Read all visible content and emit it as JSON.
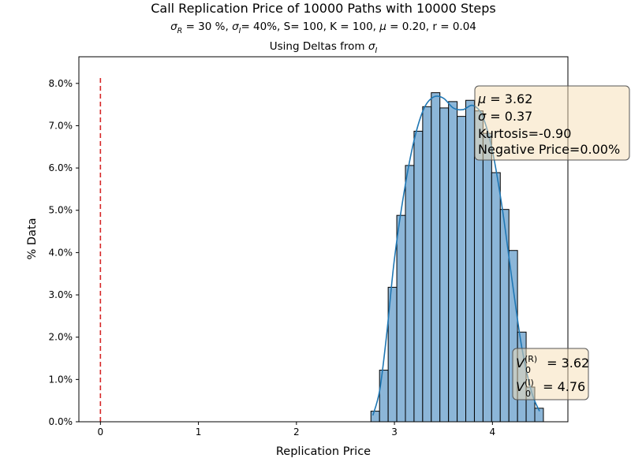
{
  "chart_data": {
    "type": "bar",
    "title": "Call Replication Price of 10000 Paths with 10000 Steps",
    "subtitle_line2": "σR = 30 %, σI= 40%, S= 100, K = 100, μ = 0.20, r = 0.04",
    "subtitle_line3": "Using Deltas from σI",
    "xlabel": "Replication Price",
    "ylabel": "% Data",
    "xlim": [
      -0.22,
      4.77
    ],
    "ylim": [
      0,
      0.0863
    ],
    "x_ticks": [
      0,
      1,
      2,
      3,
      4
    ],
    "x_tick_labels": [
      "0",
      "1",
      "2",
      "3",
      "4"
    ],
    "y_ticks": [
      0,
      0.01,
      0.02,
      0.03,
      0.04,
      0.05,
      0.06,
      0.07,
      0.08
    ],
    "y_tick_labels": [
      "0.0%",
      "1.0%",
      "2.0%",
      "3.0%",
      "4.0%",
      "5.0%",
      "6.0%",
      "7.0%",
      "8.0%"
    ],
    "bin_edges": [
      2.76,
      2.848,
      2.936,
      3.024,
      3.112,
      3.2,
      3.288,
      3.376,
      3.464,
      3.552,
      3.64,
      3.728,
      3.816,
      3.904,
      3.992,
      4.08,
      4.168,
      4.256,
      4.344,
      4.432,
      4.52
    ],
    "values": [
      0.0025,
      0.0122,
      0.0318,
      0.0488,
      0.0606,
      0.0687,
      0.0745,
      0.0778,
      0.0742,
      0.0757,
      0.0722,
      0.076,
      0.0735,
      0.0682,
      0.0589,
      0.0502,
      0.0405,
      0.0212,
      0.0082,
      0.0032
    ],
    "kde_x": [
      2.78,
      2.85,
      2.92,
      3.0,
      3.1,
      3.2,
      3.3,
      3.4,
      3.5,
      3.6,
      3.7,
      3.8,
      3.9,
      4.0,
      4.1,
      4.2,
      4.3,
      4.4,
      4.48
    ],
    "kde_y": [
      0.0015,
      0.0075,
      0.0205,
      0.0385,
      0.0545,
      0.0665,
      0.074,
      0.0768,
      0.0765,
      0.0742,
      0.0738,
      0.0748,
      0.0722,
      0.064,
      0.0505,
      0.0335,
      0.0175,
      0.007,
      0.0025
    ],
    "reference_line": {
      "x": 0,
      "y_top": 0.0815,
      "color": "#d62728",
      "style": "dashed"
    },
    "colors": {
      "bar_fill": "#8cb6d8",
      "bar_edge": "#000000",
      "kde": "#1f77b4",
      "box_fill": "#f5deb3",
      "box_edge": "#555555"
    },
    "stats_box": {
      "mu_symbol": "μ",
      "mu_value": " = 3.62",
      "sigma_symbol": "σ",
      "sigma_value": " = 0.37",
      "kurtosis": "Kurtosis=-0.90",
      "negative_price": "Negative Price=0.00%"
    },
    "value_box": {
      "v": "V",
      "r_sup": "(R)",
      "r_sub": "0",
      "r_value": " = 3.62",
      "i_sup": "(I)",
      "i_sub": "0",
      "i_value": " = 4.76"
    },
    "title_parts": {
      "sigma": "σ",
      "R": "R",
      "mid1": " = 30 %, ",
      "I": "I",
      "tail1": "= 40%, S= 100, K = 100, ",
      "mu": "μ",
      "tail2": " = 0.20, r = 0.04",
      "using": "Using Deltas from "
    }
  }
}
